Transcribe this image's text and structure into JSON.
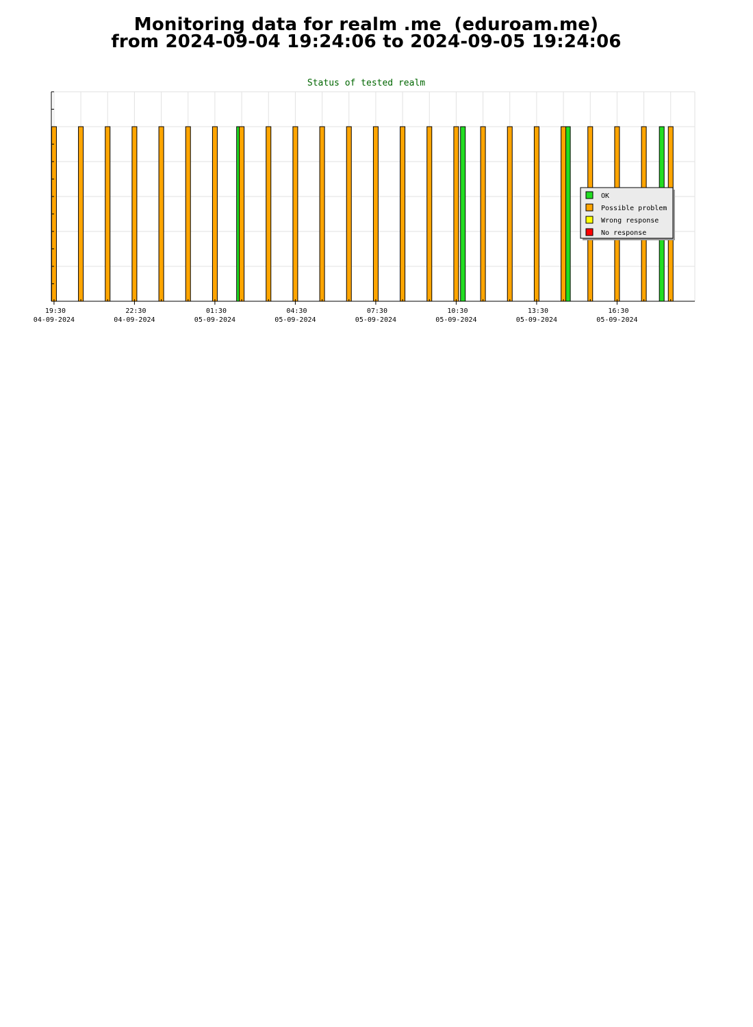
{
  "page": {
    "title_line1": "Monitoring data for realm .me  (eduroam.me)",
    "title_line2": "from 2024-09-04 19:24:06 to 2024-09-05 19:24:06"
  },
  "chart_data": {
    "type": "bar",
    "title": "Status of tested realm",
    "xlabel": "",
    "ylabel": "",
    "x_axis": "time",
    "x_range": [
      "2024-09-04 19:24",
      "2024-09-05 19:24"
    ],
    "ylim": [
      0,
      1.2
    ],
    "grid": true,
    "legend_position": "right",
    "x_ticks": [
      {
        "time": "19:30",
        "date": "04-09-2024"
      },
      {
        "time": "22:30",
        "date": "04-09-2024"
      },
      {
        "time": "01:30",
        "date": "05-09-2024"
      },
      {
        "time": "04:30",
        "date": "05-09-2024"
      },
      {
        "time": "07:30",
        "date": "05-09-2024"
      },
      {
        "time": "10:30",
        "date": "05-09-2024"
      },
      {
        "time": "13:30",
        "date": "05-09-2024"
      },
      {
        "time": "16:30",
        "date": "05-09-2024"
      }
    ],
    "series": [
      {
        "name": "OK",
        "color": "#22dd22",
        "points": [
          {
            "x": "2024-09-05 02:24",
            "y": 1
          },
          {
            "x": "2024-09-05 10:45",
            "y": 1
          },
          {
            "x": "2024-09-05 14:40",
            "y": 1
          },
          {
            "x": "2024-09-05 18:10",
            "y": 1
          }
        ]
      },
      {
        "name": "Possible problem",
        "color": "#ffa500",
        "points": [
          {
            "x": "2024-09-04 19:30",
            "y": 1
          },
          {
            "x": "2024-09-04 20:30",
            "y": 1
          },
          {
            "x": "2024-09-04 21:30",
            "y": 1
          },
          {
            "x": "2024-09-04 22:30",
            "y": 1
          },
          {
            "x": "2024-09-04 23:30",
            "y": 1
          },
          {
            "x": "2024-09-05 00:30",
            "y": 1
          },
          {
            "x": "2024-09-05 01:30",
            "y": 1
          },
          {
            "x": "2024-09-05 02:30",
            "y": 1
          },
          {
            "x": "2024-09-05 03:30",
            "y": 1
          },
          {
            "x": "2024-09-05 04:30",
            "y": 1
          },
          {
            "x": "2024-09-05 05:30",
            "y": 1
          },
          {
            "x": "2024-09-05 06:30",
            "y": 1
          },
          {
            "x": "2024-09-05 07:30",
            "y": 1
          },
          {
            "x": "2024-09-05 08:30",
            "y": 1
          },
          {
            "x": "2024-09-05 09:30",
            "y": 1
          },
          {
            "x": "2024-09-05 10:30",
            "y": 1
          },
          {
            "x": "2024-09-05 11:30",
            "y": 1
          },
          {
            "x": "2024-09-05 12:30",
            "y": 1
          },
          {
            "x": "2024-09-05 13:30",
            "y": 1
          },
          {
            "x": "2024-09-05 14:30",
            "y": 1
          },
          {
            "x": "2024-09-05 15:30",
            "y": 1
          },
          {
            "x": "2024-09-05 16:30",
            "y": 1
          },
          {
            "x": "2024-09-05 17:30",
            "y": 1
          },
          {
            "x": "2024-09-05 18:30",
            "y": 1
          }
        ]
      },
      {
        "name": "Wrong response",
        "color": "#ffff00",
        "points": []
      },
      {
        "name": "No response",
        "color": "#ff0000",
        "points": []
      }
    ]
  }
}
